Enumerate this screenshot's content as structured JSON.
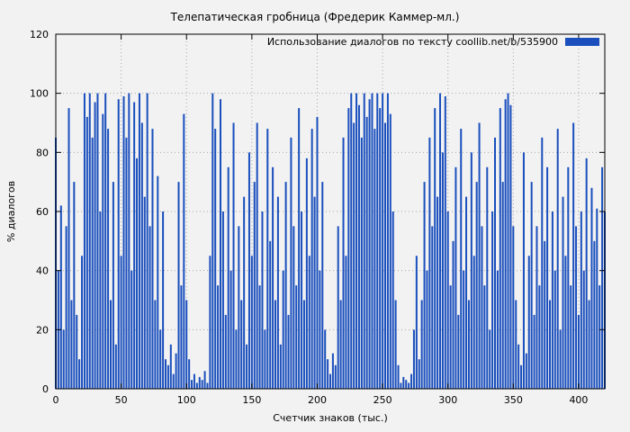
{
  "title": "Телепатическая гробница (Фредерик Каммер-мл.)",
  "legend": {
    "label": "Использование диалогов по тексту  coollib.net/b/535900",
    "swatch_color": "#1a4fbd"
  },
  "colors": {
    "background": "#f2f2f2",
    "bar": "#1a4fbd",
    "grid": "#a8a8a8",
    "border": "#000000",
    "text": "#000000"
  },
  "chart_data": {
    "type": "bar",
    "title": "Телепатическая гробница (Фредерик Каммер-мл.)",
    "xlabel": "Счетчик знаков (тыс.)",
    "ylabel": "% диалогов",
    "xlim": [
      0,
      420
    ],
    "ylim": [
      0,
      120
    ],
    "x_ticks": [
      0,
      50,
      100,
      150,
      200,
      250,
      300,
      350,
      400
    ],
    "y_ticks": [
      0,
      20,
      40,
      60,
      80,
      100,
      120
    ],
    "grid": true,
    "legend_position": "top-right",
    "series_name": "Использование диалогов по тексту  coollib.net/b/535900",
    "x_start": 0,
    "x_step": 2,
    "values": [
      85,
      40,
      62,
      20,
      55,
      95,
      30,
      70,
      25,
      10,
      45,
      100,
      92,
      100,
      85,
      97,
      100,
      60,
      93,
      100,
      88,
      30,
      70,
      15,
      98,
      45,
      99,
      85,
      100,
      40,
      97,
      78,
      100,
      90,
      65,
      100,
      55,
      88,
      30,
      72,
      20,
      60,
      10,
      8,
      15,
      5,
      12,
      70,
      35,
      93,
      30,
      10,
      3,
      5,
      2,
      4,
      3,
      6,
      2,
      45,
      100,
      88,
      35,
      98,
      60,
      25,
      75,
      40,
      90,
      20,
      55,
      30,
      65,
      15,
      80,
      45,
      70,
      90,
      35,
      60,
      20,
      88,
      50,
      75,
      30,
      65,
      15,
      40,
      70,
      25,
      85,
      55,
      35,
      95,
      60,
      30,
      78,
      45,
      88,
      65,
      92,
      40,
      70,
      20,
      10,
      5,
      12,
      8,
      55,
      30,
      85,
      45,
      95,
      100,
      90,
      100,
      96,
      85,
      100,
      92,
      98,
      100,
      88,
      100,
      95,
      100,
      90,
      100,
      93,
      60,
      30,
      8,
      2,
      4,
      3,
      2,
      5,
      20,
      45,
      10,
      30,
      70,
      40,
      85,
      55,
      95,
      65,
      100,
      80,
      99,
      60,
      35,
      50,
      75,
      25,
      88,
      40,
      65,
      30,
      80,
      45,
      70,
      90,
      55,
      35,
      75,
      20,
      60,
      85,
      40,
      95,
      70,
      98,
      100,
      96,
      55,
      30,
      15,
      8,
      80,
      12,
      45,
      70,
      25,
      55,
      35,
      85,
      50,
      75,
      30,
      60,
      40,
      88,
      20,
      65,
      45,
      75,
      35,
      90,
      55,
      25,
      60,
      40,
      78,
      30,
      68,
      50,
      61,
      35,
      75,
      60
    ]
  }
}
